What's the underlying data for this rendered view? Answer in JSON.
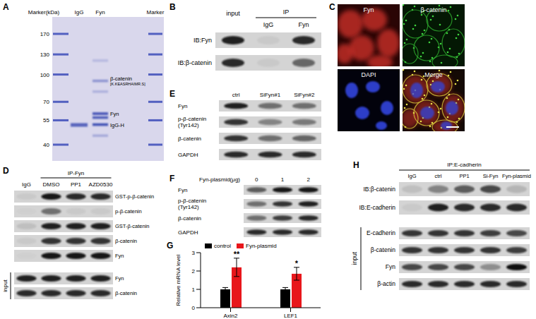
{
  "panels": {
    "A": {
      "letter": "A",
      "header": [
        "Marker(kDa)",
        "IgG",
        "Fyn",
        "Marker"
      ],
      "markers": [
        170,
        130,
        100,
        70,
        55,
        40
      ],
      "annotations": [
        {
          "label": "β-catenin",
          "note": "[K.KEASRHAIMR.S]"
        },
        {
          "label": "Fyn"
        },
        {
          "label": "IgG-H"
        }
      ]
    },
    "B": {
      "letter": "B",
      "ip": "IP",
      "lanes": [
        "input",
        "IgG",
        "Fyn"
      ],
      "rows": [
        "IB:Fyn",
        "IB:β-catenin"
      ]
    },
    "C": {
      "letter": "C",
      "channels": [
        "Fyn",
        "β-catenin",
        "DAPI",
        "Merge"
      ]
    },
    "D": {
      "letter": "D",
      "ip": "IP-Fyn",
      "lanes": [
        "IgG",
        "DMSO",
        "PP1",
        "AZD0530"
      ],
      "rows": [
        "GST-p-β-catenin",
        "p-β-catenin",
        "GST-β-catenin",
        "β-catenin",
        "Fyn"
      ],
      "input_label": "input",
      "input_rows": [
        "Fyn",
        "β-catenin"
      ]
    },
    "E": {
      "letter": "E",
      "lanes": [
        "ctrl",
        "SiFyn#1",
        "SiFyn#2"
      ],
      "rows": [
        "Fyn",
        [
          "p-β-catenin",
          "(Tyr142)"
        ],
        "β-catenin",
        "GAPDH"
      ]
    },
    "F": {
      "letter": "F",
      "lane_title": "Fyn-plasmid(μg)",
      "lanes": [
        0,
        1,
        2
      ],
      "rows": [
        "Fyn",
        [
          "p-β-catenin",
          "(Tyr142)"
        ],
        "β-catenin",
        "GAPDH"
      ]
    },
    "G": {
      "letter": "G"
    },
    "H": {
      "letter": "H",
      "ip": "IP:E-cadherin",
      "lanes": [
        "IgG",
        "ctrl",
        "PP1",
        "Si-Fyn",
        "Fyn-plasmid"
      ],
      "rows": [
        "IB:β-catenin",
        "IB:E-cadherin"
      ],
      "input_label": "input",
      "input_rows": [
        "E-cadherin",
        "β-catenin",
        "Fyn",
        "β-actin"
      ]
    }
  },
  "chart_data": {
    "type": "bar",
    "categories": [
      "Axin2",
      "LEF1"
    ],
    "series": [
      {
        "name": "control",
        "color": "#000000",
        "values": [
          1.0,
          1.0
        ],
        "errors": [
          0.1,
          0.1
        ]
      },
      {
        "name": "Fyn-plasmid",
        "color": "#e8161b",
        "values": [
          2.2,
          1.85
        ],
        "errors": [
          0.5,
          0.35
        ]
      }
    ],
    "ylabel": "Relative mRNA level",
    "ylim": [
      0,
      3
    ],
    "yticks": [
      0,
      1,
      2,
      3
    ],
    "legend": "top left",
    "annotations": [
      {
        "text": "**",
        "category": "Axin2",
        "series": "Fyn-plasmid"
      },
      {
        "text": "*",
        "category": "LEF1",
        "series": "Fyn-plasmid"
      }
    ]
  }
}
